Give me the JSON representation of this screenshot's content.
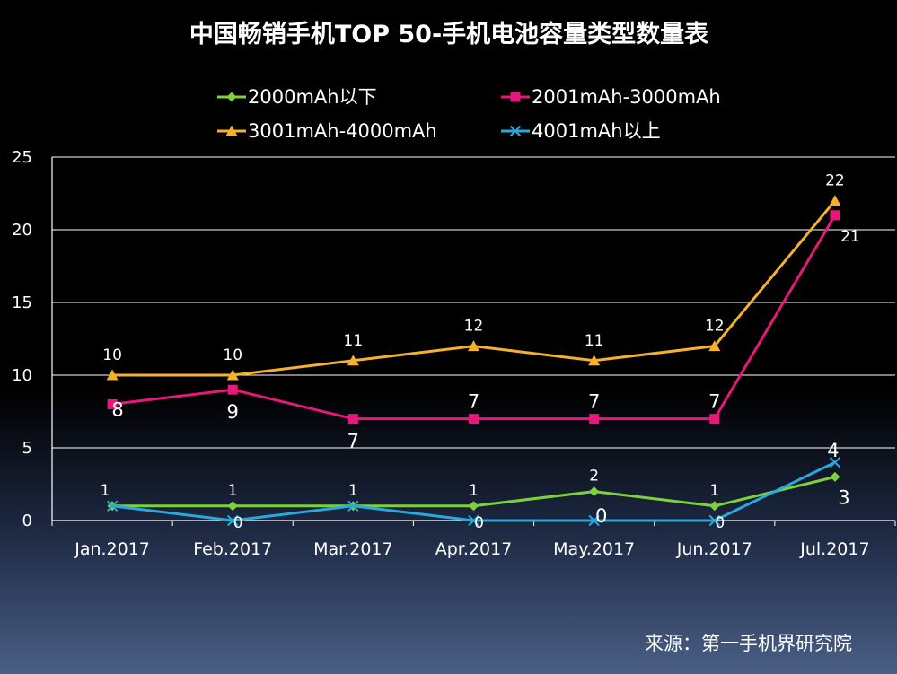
{
  "chart_data": {
    "type": "line",
    "title": "中国畅销手机TOP 50-手机电池容量类型数量表",
    "categories": [
      "Jan.2017",
      "Feb.2017",
      "Mar.2017",
      "Apr.2017",
      "May.2017",
      "Jun.2017",
      "Jul.2017"
    ],
    "ylim": [
      0,
      25
    ],
    "yticks": [
      0,
      5,
      10,
      15,
      20,
      25
    ],
    "grid": true,
    "legend_position": "top",
    "series": [
      {
        "name": "2000mAh以下",
        "values": [
          1,
          1,
          1,
          1,
          2,
          1,
          3
        ],
        "color": "#7ed13a",
        "marker": "diamond",
        "labels": [
          "1",
          "1",
          "1",
          "1",
          "2",
          "1",
          "3"
        ]
      },
      {
        "name": "2001mAh-3000mAh",
        "values": [
          8,
          9,
          7,
          7,
          7,
          7,
          21
        ],
        "color": "#e8187a",
        "marker": "square",
        "labels": [
          "8",
          "9",
          "7",
          "7",
          "7",
          "7",
          "21"
        ]
      },
      {
        "name": "3001mAh-4000mAh",
        "values": [
          10,
          10,
          11,
          12,
          11,
          12,
          22
        ],
        "color": "#f4b12a",
        "marker": "triangle",
        "labels": [
          "10",
          "10",
          "11",
          "12",
          "11",
          "12",
          "22"
        ]
      },
      {
        "name": "4001mAh以上",
        "values": [
          1,
          0,
          1,
          0,
          0,
          0,
          4
        ],
        "color": "#29a8dd",
        "marker": "x",
        "labels": [
          "1",
          "0",
          "1",
          "0",
          "0",
          "0",
          "4"
        ]
      }
    ]
  },
  "source": "来源：第一手机界研究院"
}
